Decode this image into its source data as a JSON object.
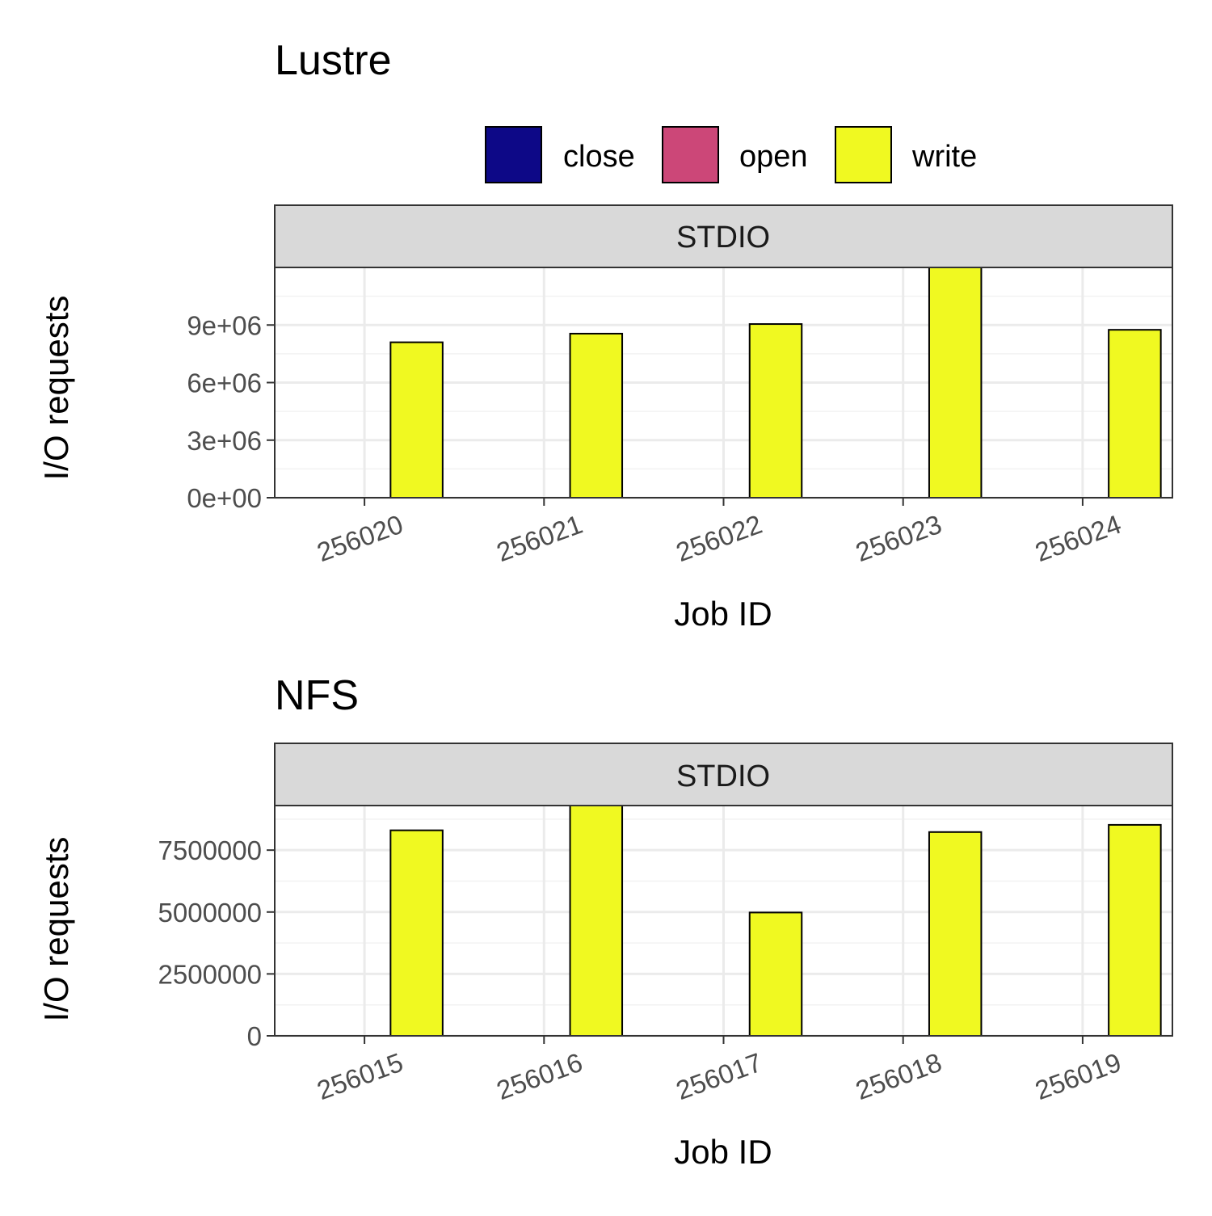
{
  "legend": {
    "items": [
      {
        "label": "close",
        "color": "#0d0887"
      },
      {
        "label": "open",
        "color": "#cc4778"
      },
      {
        "label": "write",
        "color": "#f0f921"
      }
    ]
  },
  "chart_data": [
    {
      "type": "bar",
      "title": "Lustre",
      "facet": "STDIO",
      "xlabel": "Job ID",
      "ylabel": "I/O requests",
      "categories": [
        "256020",
        "256021",
        "256022",
        "256023",
        "256024"
      ],
      "series": [
        {
          "name": "close",
          "values": [
            0,
            0,
            0,
            0,
            0
          ]
        },
        {
          "name": "open",
          "values": [
            0,
            0,
            0,
            0,
            0
          ]
        },
        {
          "name": "write",
          "values": [
            8100000,
            8550000,
            9050000,
            12000000,
            8750000
          ]
        }
      ],
      "ylim": [
        0,
        12000000
      ],
      "yticks": [
        0,
        3000000,
        6000000,
        9000000
      ],
      "ytick_labels": [
        "0e+00",
        "3e+06",
        "6e+06",
        "9e+06"
      ],
      "grid": true,
      "legend_position": "top"
    },
    {
      "type": "bar",
      "title": "NFS",
      "facet": "STDIO",
      "xlabel": "Job ID",
      "ylabel": "I/O requests",
      "categories": [
        "256015",
        "256016",
        "256017",
        "256018",
        "256019"
      ],
      "series": [
        {
          "name": "close",
          "values": [
            0,
            0,
            0,
            0,
            0
          ]
        },
        {
          "name": "open",
          "values": [
            0,
            0,
            0,
            0,
            0
          ]
        },
        {
          "name": "write",
          "values": [
            8300000,
            9300000,
            4980000,
            8230000,
            8520000
          ]
        }
      ],
      "ylim": [
        0,
        9300000
      ],
      "yticks": [
        0,
        2500000,
        5000000,
        7500000
      ],
      "ytick_labels": [
        "0",
        "2500000",
        "5000000",
        "7500000"
      ],
      "grid": true,
      "legend_position": "none"
    }
  ]
}
